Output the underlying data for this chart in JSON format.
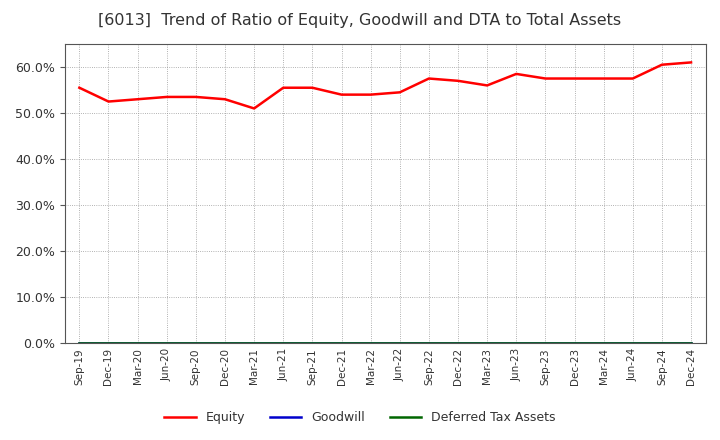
{
  "title": "[6013]  Trend of Ratio of Equity, Goodwill and DTA to Total Assets",
  "x_labels": [
    "Sep-19",
    "Dec-19",
    "Mar-20",
    "Jun-20",
    "Sep-20",
    "Dec-20",
    "Mar-21",
    "Jun-21",
    "Sep-21",
    "Dec-21",
    "Mar-22",
    "Jun-22",
    "Sep-22",
    "Dec-22",
    "Mar-23",
    "Jun-23",
    "Sep-23",
    "Dec-23",
    "Mar-24",
    "Jun-24",
    "Sep-24",
    "Dec-24"
  ],
  "equity": [
    55.5,
    52.5,
    53.0,
    53.5,
    53.5,
    53.0,
    51.0,
    55.5,
    55.5,
    54.0,
    54.0,
    54.5,
    57.5,
    57.0,
    56.0,
    58.5,
    57.5,
    57.5,
    57.5,
    57.5,
    60.5,
    61.0
  ],
  "goodwill": [
    0,
    0,
    0,
    0,
    0,
    0,
    0,
    0,
    0,
    0,
    0,
    0,
    0,
    0,
    0,
    0,
    0,
    0,
    0,
    0,
    0,
    0
  ],
  "dta": [
    0,
    0,
    0,
    0,
    0,
    0,
    0,
    0,
    0,
    0,
    0,
    0,
    0,
    0,
    0,
    0,
    0,
    0,
    0,
    0,
    0,
    0
  ],
  "equity_color": "#FF0000",
  "goodwill_color": "#0000CC",
  "dta_color": "#006600",
  "ylim": [
    0,
    65
  ],
  "yticks": [
    0,
    10,
    20,
    30,
    40,
    50,
    60
  ],
  "background_color": "#FFFFFF",
  "plot_bg_color": "#FFFFFF",
  "grid_color": "#999999",
  "title_fontsize": 11.5,
  "title_color": "#333333",
  "legend_labels": [
    "Equity",
    "Goodwill",
    "Deferred Tax Assets"
  ]
}
